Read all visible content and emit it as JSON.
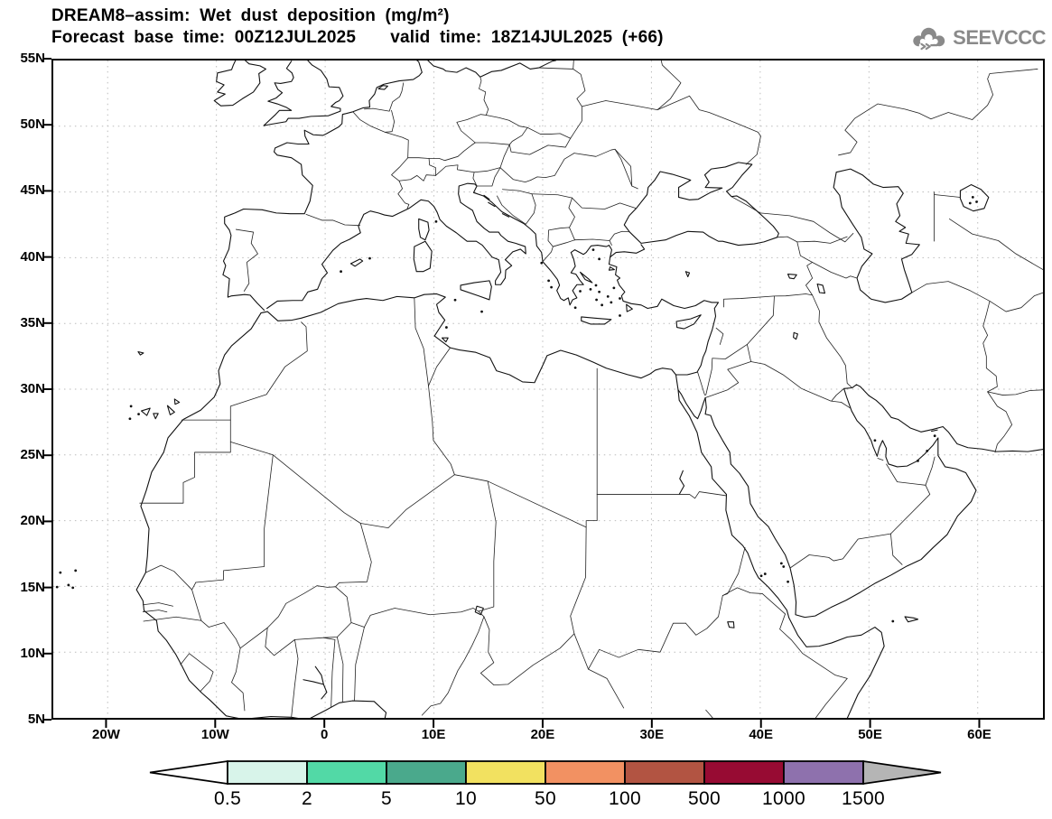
{
  "header": {
    "title_line1": "DREAM8–assim: Wet dust deposition (mg/m²)",
    "forecast_base_label": "Forecast base time: 00Z12JUL2025",
    "valid_time_label": "valid time: 18Z14JUL2025 (+66)",
    "logo_text": "SEEVCCC"
  },
  "map": {
    "lat_ticks": [
      {
        "label": "55N",
        "value": 55
      },
      {
        "label": "50N",
        "value": 50
      },
      {
        "label": "45N",
        "value": 45
      },
      {
        "label": "40N",
        "value": 40
      },
      {
        "label": "35N",
        "value": 35
      },
      {
        "label": "30N",
        "value": 30
      },
      {
        "label": "25N",
        "value": 25
      },
      {
        "label": "20N",
        "value": 20
      },
      {
        "label": "15N",
        "value": 15
      },
      {
        "label": "10N",
        "value": 10
      },
      {
        "label": "5N",
        "value": 5
      }
    ],
    "lon_ticks": [
      {
        "label": "20W",
        "value": -20
      },
      {
        "label": "10W",
        "value": -10
      },
      {
        "label": "0",
        "value": 0
      },
      {
        "label": "10E",
        "value": 10
      },
      {
        "label": "20E",
        "value": 20
      },
      {
        "label": "30E",
        "value": 30
      },
      {
        "label": "40E",
        "value": 40
      },
      {
        "label": "50E",
        "value": 50
      },
      {
        "label": "60E",
        "value": 60
      }
    ],
    "extent": {
      "lon_min": -25,
      "lon_max": 66,
      "lat_min": 5,
      "lat_max": 55
    },
    "grid_color": "#bbbbbb",
    "coast_color": "#111111",
    "border_color": "#222222"
  },
  "colorbar": {
    "labels": [
      "0.5",
      "2",
      "5",
      "10",
      "50",
      "100",
      "500",
      "1000",
      "1500"
    ],
    "segment_colors": [
      "#d8f4ea",
      "#52d9a6",
      "#4aa98c",
      "#f2e160",
      "#f29162",
      "#b25442",
      "#970b33",
      "#8e71ad"
    ],
    "under_arrow_color": "#ffffff",
    "over_arrow_color": "#b5b5b5",
    "outline_color": "#000000"
  },
  "chart_data": {
    "type": "map",
    "title": "DREAM8–assim: Wet dust deposition (mg/m²)",
    "model": "DREAM8-assim",
    "variable": "Wet dust deposition",
    "units": "mg/m²",
    "forecast_base_time": "00Z12JUL2025",
    "valid_time": "18Z14JUL2025",
    "lead_hours": 66,
    "lon_range": [
      -25,
      66
    ],
    "lat_range": [
      5,
      55
    ],
    "x_tick_labels": [
      "20W",
      "10W",
      "0",
      "10E",
      "20E",
      "30E",
      "40E",
      "50E",
      "60E"
    ],
    "y_tick_labels": [
      "55N",
      "50N",
      "45N",
      "40N",
      "35N",
      "30N",
      "25N",
      "20N",
      "15N",
      "10N",
      "5N"
    ],
    "scale_levels_mg_m2": [
      0.5,
      2,
      5,
      10,
      50,
      100,
      500,
      1000,
      1500
    ],
    "scale_colors": [
      "#d8f4ea",
      "#52d9a6",
      "#4aa98c",
      "#f2e160",
      "#f29162",
      "#b25442",
      "#970b33",
      "#8e71ad"
    ],
    "deposition_field": "blank — no wet dust deposition at or above the lowest contour level (0.5 mg/m²) anywhere in the displayed domain"
  }
}
